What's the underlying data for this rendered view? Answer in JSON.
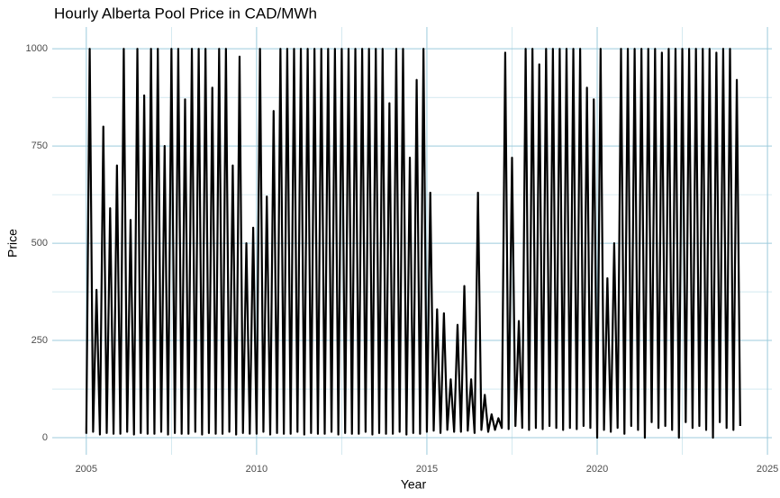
{
  "chart_data": {
    "type": "line",
    "title": "Hourly Alberta Pool Price in CAD/MWh",
    "x_label": "Year",
    "y_label": "Price",
    "xlim": [
      2004,
      2025.13
    ],
    "ylim": [
      -44,
      1056
    ],
    "xticks": [
      2005,
      2010,
      2015,
      2020,
      2025
    ],
    "yticks": [
      0,
      250,
      500,
      750,
      1000
    ],
    "x_minor_ticks": [
      2007.5,
      2012.5,
      2017.5,
      2022.5
    ],
    "y_minor_ticks": [
      125,
      375,
      625,
      875
    ],
    "grid": true,
    "series": [
      {
        "name": "Price",
        "color": "#000000",
        "x": [
          2005,
          2005.1,
          2005.2,
          2005.3,
          2005.4,
          2005.5,
          2005.6,
          2005.7,
          2005.8,
          2005.9,
          2006,
          2006.1,
          2006.2,
          2006.3,
          2006.4,
          2006.5,
          2006.6,
          2006.7,
          2006.8,
          2006.9,
          2007,
          2007.1,
          2007.2,
          2007.3,
          2007.4,
          2007.5,
          2007.6,
          2007.7,
          2007.8,
          2007.9,
          2008,
          2008.1,
          2008.2,
          2008.3,
          2008.4,
          2008.5,
          2008.6,
          2008.7,
          2008.8,
          2008.9,
          2009,
          2009.1,
          2009.2,
          2009.3,
          2009.4,
          2009.5,
          2009.6,
          2009.7,
          2009.8,
          2009.9,
          2010,
          2010.1,
          2010.2,
          2010.3,
          2010.4,
          2010.5,
          2010.6,
          2010.7,
          2010.8,
          2010.9,
          2011,
          2011.1,
          2011.2,
          2011.3,
          2011.4,
          2011.5,
          2011.6,
          2011.7,
          2011.8,
          2011.9,
          2012,
          2012.1,
          2012.2,
          2012.3,
          2012.4,
          2012.5,
          2012.6,
          2012.7,
          2012.8,
          2012.9,
          2013,
          2013.1,
          2013.2,
          2013.3,
          2013.4,
          2013.5,
          2013.6,
          2013.7,
          2013.8,
          2013.9,
          2014,
          2014.1,
          2014.2,
          2014.3,
          2014.4,
          2014.5,
          2014.6,
          2014.7,
          2014.8,
          2014.9,
          2015,
          2015.1,
          2015.2,
          2015.3,
          2015.4,
          2015.5,
          2015.6,
          2015.7,
          2015.8,
          2015.9,
          2016,
          2016.1,
          2016.2,
          2016.3,
          2016.4,
          2016.5,
          2016.6,
          2016.7,
          2016.8,
          2016.9,
          2017,
          2017.1,
          2017.2,
          2017.3,
          2017.4,
          2017.5,
          2017.6,
          2017.7,
          2017.8,
          2017.9,
          2018,
          2018.1,
          2018.2,
          2018.3,
          2018.4,
          2018.5,
          2018.6,
          2018.7,
          2018.8,
          2018.9,
          2019,
          2019.1,
          2019.2,
          2019.3,
          2019.4,
          2019.5,
          2019.6,
          2019.7,
          2019.8,
          2019.9,
          2020,
          2020.1,
          2020.2,
          2020.3,
          2020.4,
          2020.5,
          2020.6,
          2020.7,
          2020.8,
          2020.9,
          2021,
          2021.1,
          2021.2,
          2021.3,
          2021.4,
          2021.5,
          2021.6,
          2021.7,
          2021.8,
          2021.9,
          2022,
          2022.1,
          2022.2,
          2022.3,
          2022.4,
          2022.5,
          2022.6,
          2022.7,
          2022.8,
          2022.9,
          2023,
          2023.1,
          2023.2,
          2023.3,
          2023.4,
          2023.5,
          2023.6,
          2023.7,
          2023.8,
          2023.9,
          2024,
          2024.1,
          2024.2
        ],
        "values": [
          10,
          1000,
          15,
          380,
          8,
          800,
          12,
          590,
          10,
          700,
          10,
          1000,
          15,
          560,
          8,
          1000,
          12,
          880,
          10,
          1000,
          10,
          1000,
          15,
          750,
          8,
          1000,
          12,
          1000,
          10,
          870,
          10,
          1000,
          15,
          1000,
          8,
          1000,
          12,
          900,
          10,
          1000,
          10,
          1000,
          15,
          700,
          8,
          980,
          12,
          500,
          10,
          540,
          10,
          1000,
          15,
          620,
          8,
          840,
          12,
          1000,
          10,
          1000,
          10,
          1000,
          15,
          1000,
          8,
          1000,
          12,
          1000,
          10,
          1000,
          10,
          1000,
          15,
          1000,
          8,
          1000,
          12,
          1000,
          10,
          1000,
          10,
          1000,
          15,
          1000,
          8,
          1000,
          12,
          1000,
          10,
          860,
          10,
          1000,
          15,
          1000,
          8,
          720,
          12,
          920,
          10,
          1000,
          15,
          630,
          18,
          330,
          12,
          320,
          20,
          150,
          15,
          290,
          15,
          390,
          18,
          150,
          12,
          630,
          20,
          110,
          15,
          60,
          20,
          50,
          25,
          990,
          22,
          720,
          30,
          300,
          25,
          1000,
          20,
          1000,
          25,
          960,
          22,
          1000,
          30,
          1000,
          25,
          1000,
          20,
          1000,
          25,
          1000,
          22,
          1000,
          30,
          900,
          25,
          870,
          0,
          1000,
          20,
          410,
          15,
          500,
          25,
          1000,
          10,
          1000,
          30,
          1000,
          20,
          1000,
          0,
          1000,
          40,
          1000,
          25,
          990,
          30,
          1000,
          20,
          1000,
          0,
          1000,
          40,
          1000,
          25,
          1000,
          30,
          1000,
          20,
          1000,
          0,
          990,
          40,
          1000,
          25,
          1000,
          20,
          920,
          30
        ]
      }
    ]
  }
}
